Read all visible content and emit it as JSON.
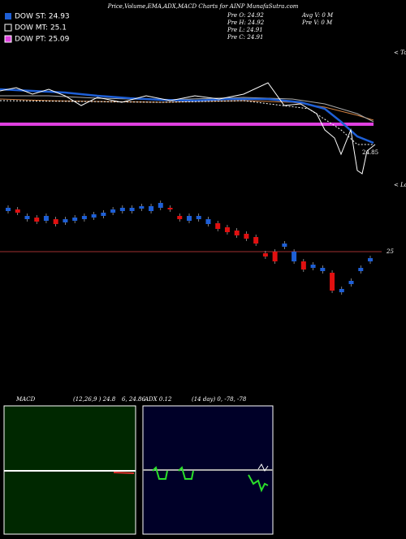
{
  "header": {
    "title": "Price,Volume,EMA,ADX,MACD Charts for AINP MunafaSutra.com"
  },
  "legend": [
    "DOW ST: 24.93",
    "DOW MT: 25.1",
    "DOW PT: 25.09"
  ],
  "stats": [
    "Pre  O: 24.92",
    "Pre  H: 24.92",
    "Pre  L: 24.91",
    "Pre  C: 24.91",
    "Avg V: 0  M",
    "Pre  V: 0  M"
  ],
  "labels": {
    "tops": "< Tops",
    "lows": "< Lows",
    "top_price": "24.85"
  },
  "indicators": {
    "macd": "MACD",
    "macd_values": "(12,26,9 ) 24.8",
    "macd_values2": "6, 24.86",
    "adx": "ADX 0.12",
    "adx_values": "(14  day) 0, -78, -78"
  },
  "chart_data": {
    "type": "candlestick",
    "open": [
      25.1,
      25.104,
      25.08,
      25.084,
      25.076,
      25.08,
      25.072,
      25.076,
      25.08,
      25.084,
      25.088,
      25.096,
      25.1,
      25.1,
      25.106,
      25.1,
      25.108,
      25.108,
      25.088,
      25.076,
      25.08,
      25.068,
      25.07,
      25.06,
      25.052,
      25.044,
      25.036,
      24.996,
      25.0,
      25.012,
      24.976,
      24.976,
      24.96,
      24.952,
      24.948,
      24.9,
      24.92,
      24.952,
      24.976
    ],
    "close": [
      25.108,
      25.096,
      25.088,
      25.074,
      25.088,
      25.068,
      25.08,
      25.084,
      25.088,
      25.092,
      25.096,
      25.104,
      25.108,
      25.108,
      25.112,
      25.112,
      25.12,
      25.104,
      25.08,
      25.088,
      25.088,
      25.08,
      25.056,
      25.048,
      25.04,
      25.032,
      25.02,
      24.988,
      24.976,
      25.02,
      25.0,
      24.956,
      24.968,
      24.96,
      24.904,
      24.908,
      24.928,
      24.96,
      24.984
    ],
    "up_color": "#1e5fd6",
    "down_color": "#e01010",
    "ylim": [
      24.86,
      25.14
    ],
    "yticks": [
      25
    ]
  }
}
